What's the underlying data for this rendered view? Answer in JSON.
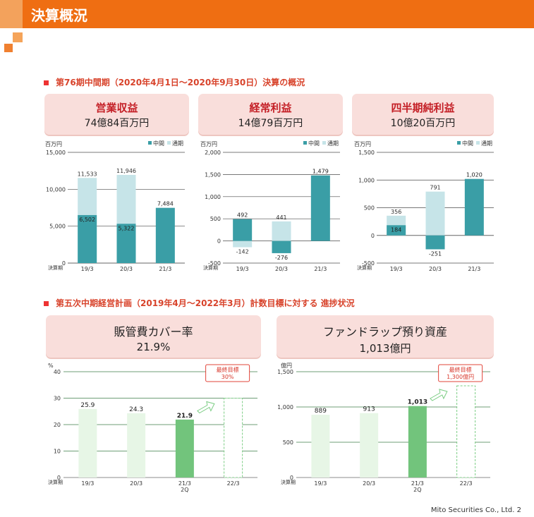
{
  "header": {
    "title": "決算概況"
  },
  "section1": {
    "title": "第76期中間期（2020年4月1日～2020年9月30日）決算の概況"
  },
  "section2": {
    "title": "第五次中期経営計画（2019年4月～2022年3月）計数目標に対する 進捗状況"
  },
  "cards": {
    "revenue": {
      "title": "営業収益",
      "value": "74億84百万円"
    },
    "ordinary": {
      "title": "経常利益",
      "value": "14億79百万円"
    },
    "net": {
      "title": "四半期純利益",
      "value": "10億20百万円"
    },
    "coverage": {
      "title": "販管費カバー率",
      "value": "21.9%"
    },
    "wrap": {
      "title": "ファンドラップ預り資産",
      "value": "1,013億円"
    }
  },
  "colors": {
    "interim": "#3a9ea6",
    "fullyear": "#c6e4e8",
    "green": "#72c47c",
    "lightgreen": "#e7f6e6",
    "accent": "#ef6e12"
  },
  "chart_data": [
    {
      "type": "bar",
      "unit": "百万円",
      "categories": [
        "19/3",
        "20/3",
        "21/3"
      ],
      "xlabel": "決算期",
      "ylim": [
        0,
        15000
      ],
      "yticks": [
        "0",
        "5,000",
        "10,000",
        "15,000"
      ],
      "legend": [
        "中間",
        "通期"
      ],
      "series": [
        {
          "name": "中間",
          "values": [
            6502,
            5322,
            7484
          ],
          "labels": [
            "6,502",
            "5,322",
            "7,484"
          ]
        },
        {
          "name": "通期",
          "values": [
            11533,
            11946,
            null
          ],
          "labels": [
            "11,533",
            "11,946",
            ""
          ]
        }
      ]
    },
    {
      "type": "bar",
      "unit": "百万円",
      "categories": [
        "19/3",
        "20/3",
        "21/3"
      ],
      "xlabel": "決算期",
      "ylim": [
        -500,
        2000
      ],
      "yticks": [
        "-500",
        "0",
        "500",
        "1,000",
        "1,500",
        "2,000"
      ],
      "legend": [
        "中間",
        "通期"
      ],
      "series": [
        {
          "name": "中間",
          "values": [
            492,
            -276,
            1479
          ],
          "labels": [
            "492",
            "-276",
            "1,479"
          ]
        },
        {
          "name": "通期",
          "values": [
            -142,
            441,
            null
          ],
          "labels": [
            "-142",
            "441",
            ""
          ]
        }
      ]
    },
    {
      "type": "bar",
      "unit": "百万円",
      "categories": [
        "19/3",
        "20/3",
        "21/3"
      ],
      "xlabel": "決算期",
      "ylim": [
        -500,
        1500
      ],
      "yticks": [
        "-500",
        "0",
        "500",
        "1,000",
        "1,500"
      ],
      "legend": [
        "中間",
        "通期"
      ],
      "series": [
        {
          "name": "中間",
          "values": [
            184,
            -251,
            1020
          ],
          "labels": [
            "184",
            "-251",
            "1,020"
          ]
        },
        {
          "name": "通期",
          "values": [
            356,
            791,
            null
          ],
          "labels": [
            "356",
            "791",
            ""
          ]
        }
      ]
    },
    {
      "type": "bar",
      "unit": "%",
      "categories": [
        "19/3",
        "20/3",
        "21/3 2Q",
        "22/3"
      ],
      "xlabel": "決算期",
      "ylim": [
        0,
        40
      ],
      "yticks": [
        "0",
        "10",
        "20",
        "30",
        "40"
      ],
      "values": [
        25.9,
        24.3,
        21.9,
        30
      ],
      "labels": [
        "25.9",
        "24.3",
        "21.9",
        ""
      ],
      "target": {
        "label": "最終目標",
        "value_label": "30%"
      }
    },
    {
      "type": "bar",
      "unit": "億円",
      "categories": [
        "19/3",
        "20/3",
        "21/3 2Q",
        "22/3"
      ],
      "xlabel": "決算期",
      "ylim": [
        0,
        1500
      ],
      "yticks": [
        "0",
        "500",
        "1,000",
        "1,500"
      ],
      "values": [
        889,
        913,
        1013,
        1300
      ],
      "labels": [
        "889",
        "913",
        "1,013",
        ""
      ],
      "target": {
        "label": "最終目標",
        "value_label": "1,300億円"
      }
    }
  ],
  "footer": {
    "text": "Mito Securities Co., Ltd.  2"
  }
}
